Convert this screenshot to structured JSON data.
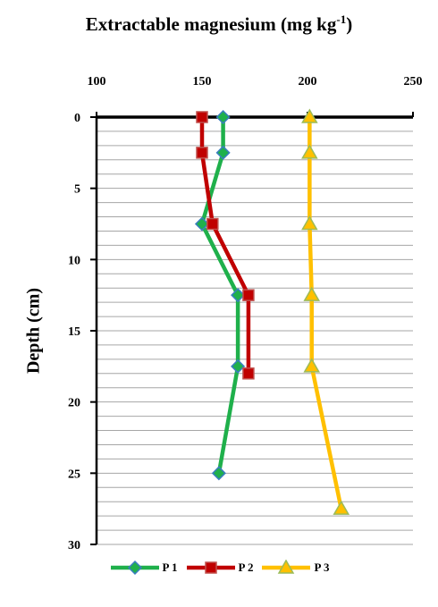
{
  "chart_data": {
    "type": "line",
    "title_main": "Extractable magnesium (mg kg",
    "title_sup": "-1",
    "title_end": ")",
    "ylabel": "Depth (cm)",
    "x_axis_position": "top",
    "xlim": [
      100,
      250
    ],
    "x_ticks": [
      "100",
      "150",
      "200",
      "250"
    ],
    "ylim": [
      0,
      30
    ],
    "y_inverted": true,
    "y_ticks": [
      "0",
      "5",
      "10",
      "15",
      "20",
      "25",
      "30"
    ],
    "grid": true,
    "legend_position": "bottom",
    "series": [
      {
        "name": "P 1",
        "color": "#1fb04b",
        "marker": "diamond",
        "x": [
          160,
          160,
          150,
          167,
          167,
          158
        ],
        "y": [
          0,
          2.5,
          7.5,
          12.5,
          17.5,
          25
        ]
      },
      {
        "name": "P 2",
        "color": "#c00000",
        "marker": "square",
        "x": [
          150,
          150,
          155,
          172,
          172
        ],
        "y": [
          0,
          2.5,
          7.5,
          12.5,
          18
        ]
      },
      {
        "name": "P 3",
        "color": "#ffc000",
        "marker": "triangle",
        "x": [
          201,
          201,
          201,
          202,
          202,
          216
        ],
        "y": [
          0,
          2.5,
          7.5,
          12.5,
          17.5,
          27.5
        ]
      }
    ]
  }
}
